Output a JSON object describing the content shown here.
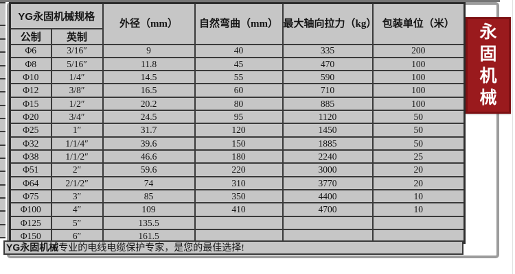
{
  "colors": {
    "banner_red": "#9a1a1d",
    "cell_gray": "#c6c6c6",
    "border_dark": "#3a3a3a",
    "frame_gray": "#9c9c9c"
  },
  "banner": {
    "chars": [
      "永",
      "固",
      "机",
      "械"
    ]
  },
  "table": {
    "title_bold": "YG永固机械",
    "title_suffix": "规格",
    "headers": [
      "外径（mm）",
      "自然弯曲（mm）",
      "最大轴向拉力（kg）",
      "包装单位（米）"
    ],
    "subheaders": [
      "公制",
      "英制"
    ],
    "rows": [
      [
        "Φ6",
        "3/16″",
        "9",
        "40",
        "335",
        "200"
      ],
      [
        "Φ8",
        "5/16″",
        "11.8",
        "45",
        "470",
        "100"
      ],
      [
        "Φ10",
        "1/4″",
        "14.5",
        "55",
        "590",
        "100"
      ],
      [
        "Φ12",
        "3/8″",
        "16.5",
        "60",
        "710",
        "100"
      ],
      [
        "Φ15",
        "1/2″",
        "20.2",
        "80",
        "885",
        "100"
      ],
      [
        "Φ20",
        "3/4″",
        "24.5",
        "95",
        "1120",
        "50"
      ],
      [
        "Φ25",
        "1″",
        "31.7",
        "120",
        "1450",
        "50"
      ],
      [
        "Φ32",
        "1/1/4″",
        "39.6",
        "150",
        "1885",
        "50"
      ],
      [
        "Φ38",
        "1/1/2″",
        "46.6",
        "180",
        "2240",
        "25"
      ],
      [
        "Φ51",
        "2″",
        "59.6",
        "220",
        "3000",
        "20"
      ],
      [
        "Φ64",
        "2/1/2″",
        "74",
        "310",
        "3770",
        "20"
      ],
      [
        "Φ75",
        "3″",
        "85",
        "350",
        "4400",
        "10"
      ],
      [
        "Φ100",
        "4″",
        "109",
        "410",
        "4700",
        "10"
      ],
      [
        "Φ125",
        "5″",
        "135.5",
        "",
        "",
        ""
      ],
      [
        "Φ150",
        "6″",
        "161.5",
        "",
        "",
        ""
      ]
    ],
    "column_kinds": [
      "metric-size",
      "imperial-size",
      "outer-diameter",
      "natural-bend",
      "max-axial-pull",
      "pack-unit"
    ]
  },
  "footer": {
    "bold": "YG永固机械",
    "rest": "专业的电线电缆保护专家，是您的最佳选择!"
  }
}
